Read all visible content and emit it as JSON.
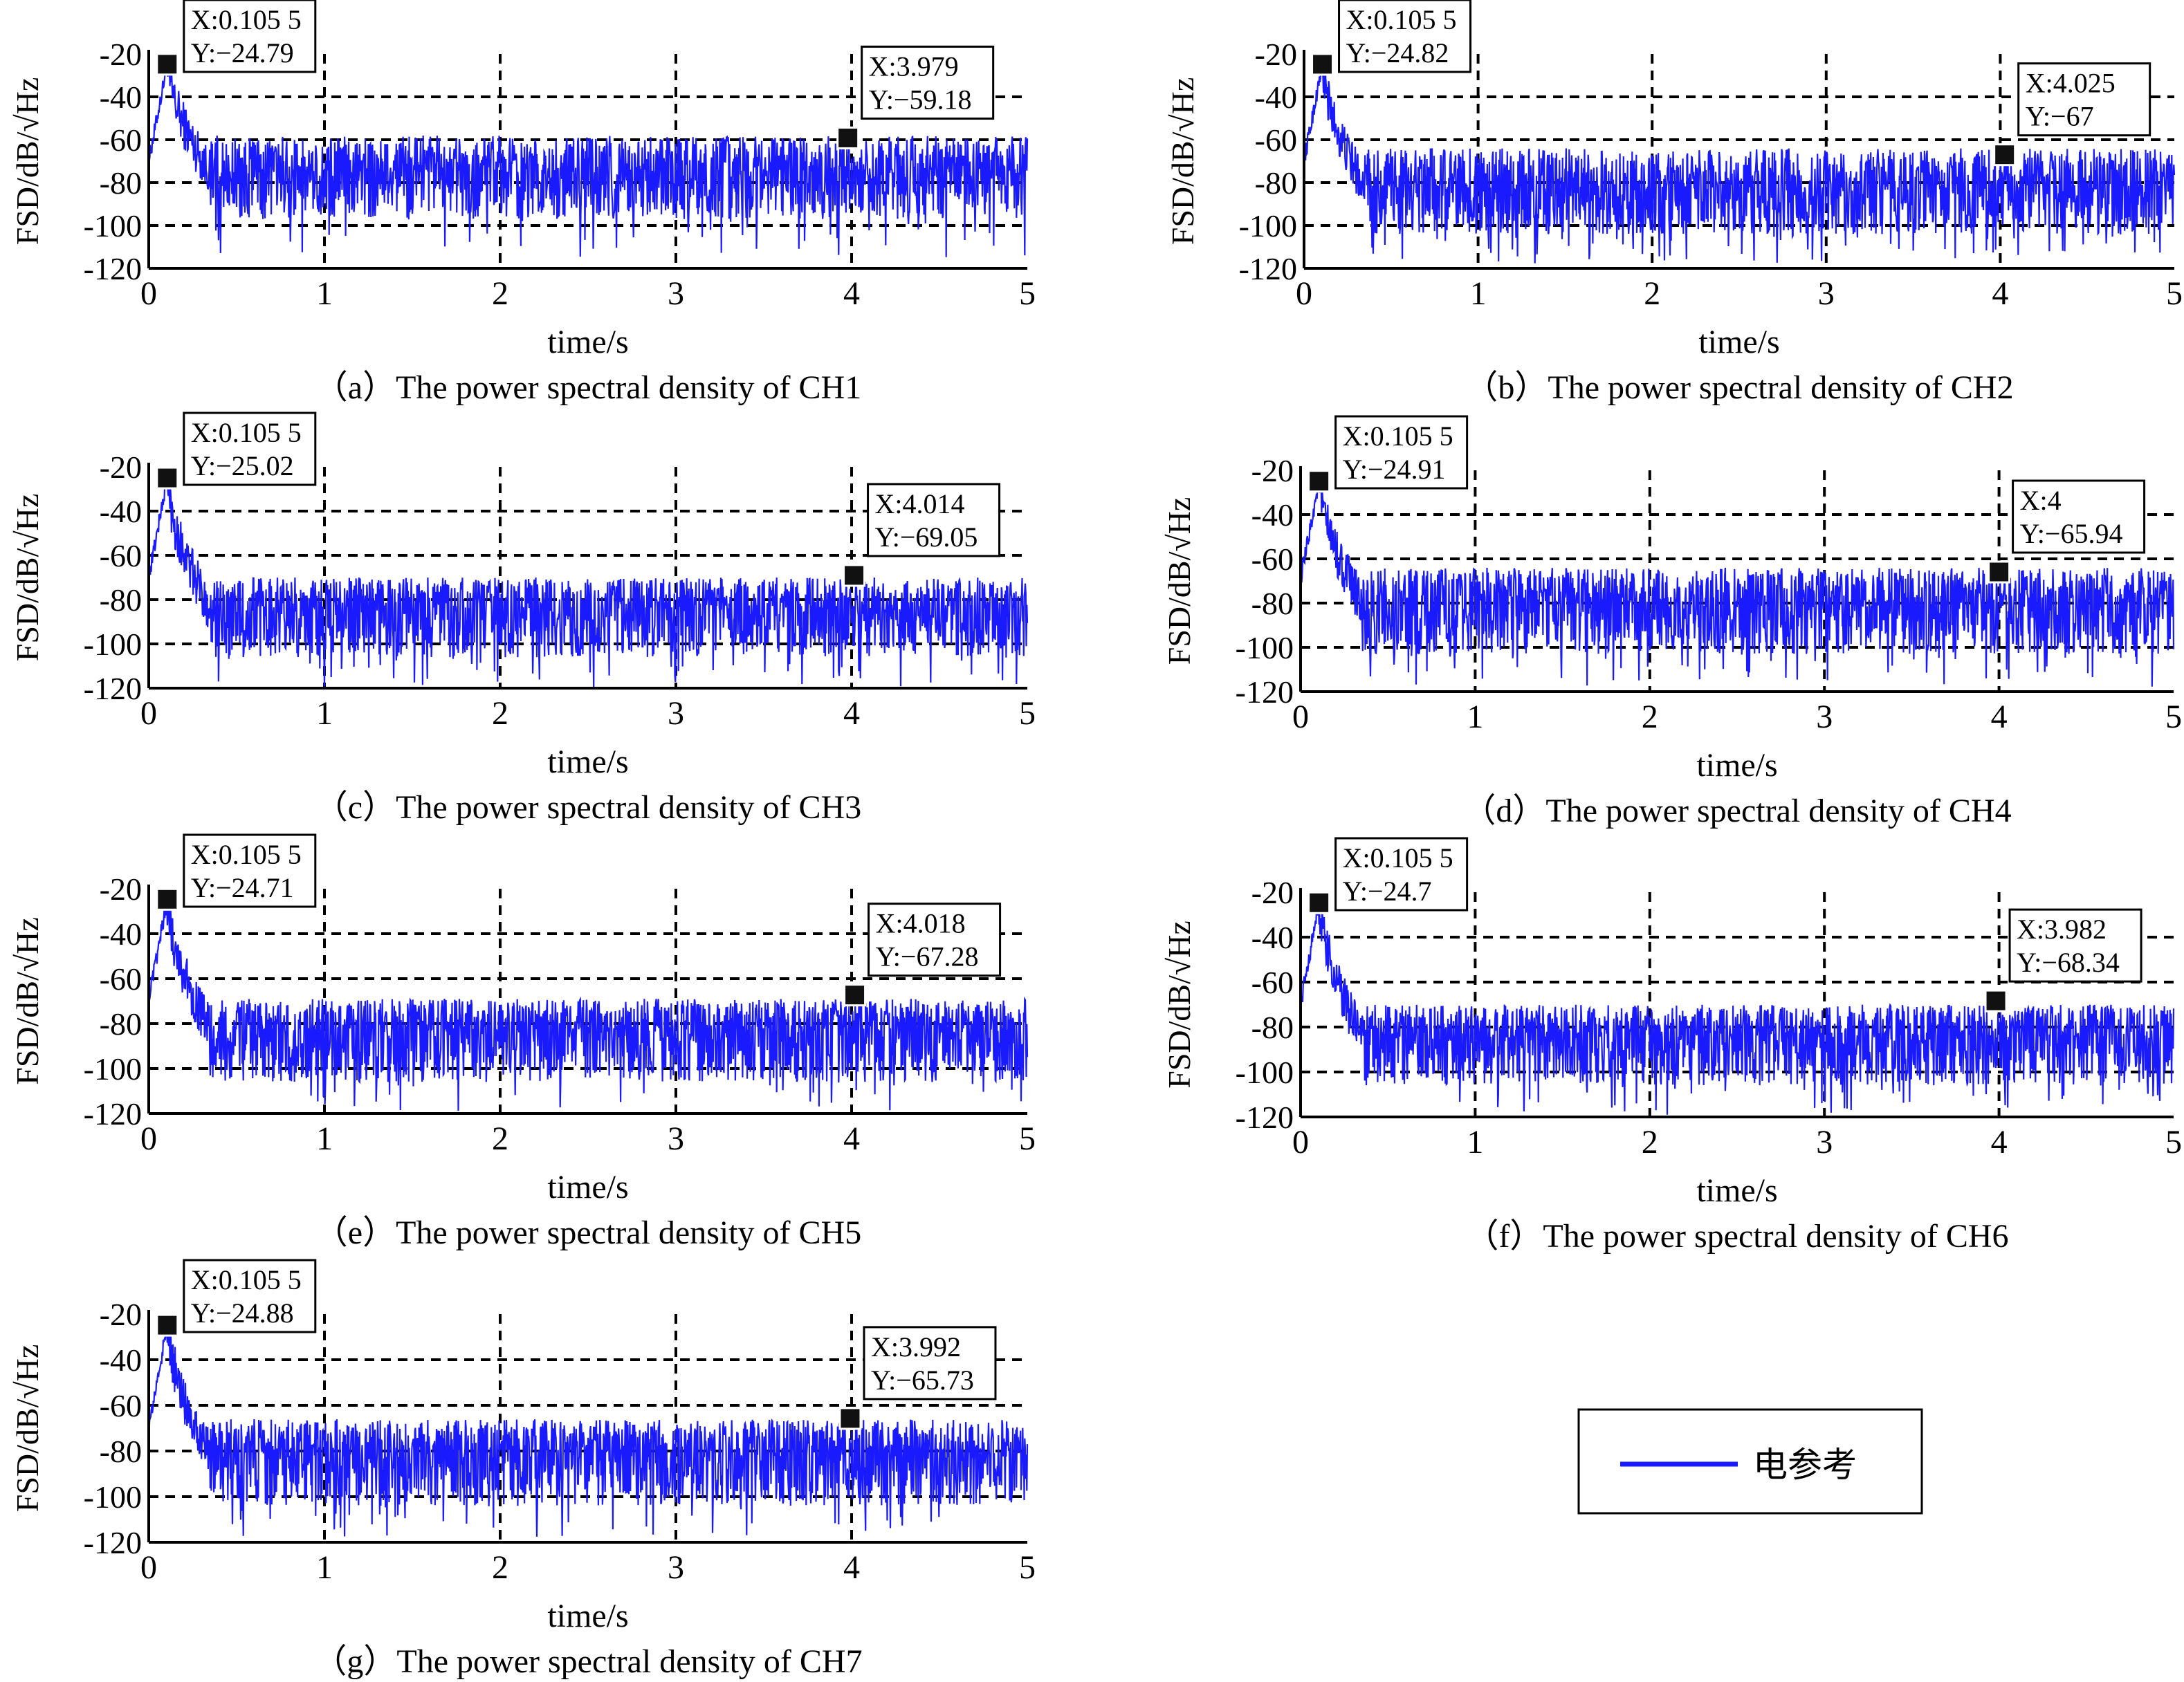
{
  "legend": {
    "label": "电参考",
    "color": "#1a1aff"
  },
  "chart_data": [
    {
      "type": "line",
      "panel": "a",
      "caption": "（a）The power spectral density of  CH1",
      "xlabel": "time/s",
      "ylabel": "FSD/dB/√Hz",
      "xlim": [
        0,
        5
      ],
      "ylim": [
        -120,
        -20
      ],
      "x_ticks": [
        "0",
        "1",
        "2",
        "3",
        "4",
        "5"
      ],
      "y_ticks": [
        "-20",
        "-40",
        "-60",
        "-80",
        "-100",
        "-120"
      ],
      "series": [
        {
          "name": "电参考",
          "color": "#1a1aff",
          "floor": -75,
          "top": -58,
          "bottom": -97,
          "dip": -116,
          "peak": {
            "x": 0.1055,
            "y": -24.79
          }
        }
      ],
      "datatips": [
        {
          "x": 0.1055,
          "y": -24.79,
          "x_text": "X:0.105 5",
          "y_text": "Y:−24.79"
        },
        {
          "x": 3.979,
          "y": -59.18,
          "x_text": "X:3.979",
          "y_text": "Y:−59.18"
        }
      ]
    },
    {
      "type": "line",
      "panel": "b",
      "caption": "（b）The power spectral density of   CH2",
      "xlabel": "time/s",
      "ylabel": "FSD/dB/√Hz",
      "xlim": [
        0,
        5
      ],
      "ylim": [
        -120,
        -20
      ],
      "x_ticks": [
        "0",
        "1",
        "2",
        "3",
        "4",
        "5"
      ],
      "y_ticks": [
        "-20",
        "-40",
        "-60",
        "-80",
        "-100",
        "-120"
      ],
      "series": [
        {
          "name": "电参考",
          "color": "#1a1aff",
          "floor": -82,
          "top": -64,
          "bottom": -104,
          "dip": -118,
          "peak": {
            "x": 0.1055,
            "y": -24.82
          }
        }
      ],
      "datatips": [
        {
          "x": 0.1055,
          "y": -24.82,
          "x_text": "X:0.105 5",
          "y_text": "Y:−24.82"
        },
        {
          "x": 4.025,
          "y": -67,
          "x_text": "X:4.025",
          "y_text": "Y:−67"
        }
      ]
    },
    {
      "type": "line",
      "panel": "c",
      "caption": "（c）The power spectral density of   CH3",
      "xlabel": "time/s",
      "ylabel": "FSD/dB/√Hz",
      "xlim": [
        0,
        5
      ],
      "ylim": [
        -120,
        -20
      ],
      "x_ticks": [
        "0",
        "1",
        "2",
        "3",
        "4",
        "5"
      ],
      "y_ticks": [
        "-20",
        "-40",
        "-60",
        "-80",
        "-100",
        "-120"
      ],
      "series": [
        {
          "name": "电参考",
          "color": "#1a1aff",
          "floor": -84,
          "top": -70,
          "bottom": -106,
          "dip": -120,
          "peak": {
            "x": 0.1055,
            "y": -25.02
          }
        }
      ],
      "datatips": [
        {
          "x": 0.1055,
          "y": -25.02,
          "x_text": "X:0.105 5",
          "y_text": "Y:−25.02"
        },
        {
          "x": 4.014,
          "y": -69.05,
          "x_text": "X:4.014",
          "y_text": "Y:−69.05"
        }
      ]
    },
    {
      "type": "line",
      "panel": "d",
      "caption": "（d）The power spectral density of   CH4",
      "xlabel": "time/s",
      "ylabel": "FSD/dB/√Hz",
      "xlim": [
        0,
        5
      ],
      "ylim": [
        -120,
        -20
      ],
      "x_ticks": [
        "0",
        "1",
        "2",
        "3",
        "4",
        "5"
      ],
      "y_ticks": [
        "-20",
        "-40",
        "-60",
        "-80",
        "-100",
        "-120"
      ],
      "series": [
        {
          "name": "电参考",
          "color": "#1a1aff",
          "floor": -80,
          "top": -64,
          "bottom": -103,
          "dip": -118,
          "peak": {
            "x": 0.1055,
            "y": -24.91
          }
        }
      ],
      "datatips": [
        {
          "x": 0.1055,
          "y": -24.91,
          "x_text": "X:0.105 5",
          "y_text": "Y:−24.91"
        },
        {
          "x": 4,
          "y": -65.94,
          "x_text": "X:4",
          "y_text": "Y:−65.94"
        }
      ]
    },
    {
      "type": "line",
      "panel": "e",
      "caption": "（e）The power spectral density of   CH5",
      "xlabel": "time/s",
      "ylabel": "FSD/dB/√Hz",
      "xlim": [
        0,
        5
      ],
      "ylim": [
        -120,
        -20
      ],
      "x_ticks": [
        "0",
        "1",
        "2",
        "3",
        "4",
        "5"
      ],
      "y_ticks": [
        "-20",
        "-40",
        "-60",
        "-80",
        "-100",
        "-120"
      ],
      "series": [
        {
          "name": "电参考",
          "color": "#1a1aff",
          "floor": -83,
          "top": -69,
          "bottom": -106,
          "dip": -119,
          "peak": {
            "x": 0.1055,
            "y": -24.71
          }
        }
      ],
      "datatips": [
        {
          "x": 0.1055,
          "y": -24.71,
          "x_text": "X:0.105 5",
          "y_text": "Y:−24.71"
        },
        {
          "x": 4.018,
          "y": -67.28,
          "x_text": "X:4.018",
          "y_text": "Y:−67.28"
        }
      ]
    },
    {
      "type": "line",
      "panel": "f",
      "caption": "（f）The power spectral density of   CH6",
      "xlabel": "time/s",
      "ylabel": "FSD/dB/√Hz",
      "xlim": [
        0,
        5
      ],
      "ylim": [
        -120,
        -20
      ],
      "x_ticks": [
        "0",
        "1",
        "2",
        "3",
        "4",
        "5"
      ],
      "y_ticks": [
        "-20",
        "-40",
        "-60",
        "-80",
        "-100",
        "-120"
      ],
      "series": [
        {
          "name": "电参考",
          "color": "#1a1aff",
          "floor": -84,
          "top": -70,
          "bottom": -106,
          "dip": -119,
          "peak": {
            "x": 0.1055,
            "y": -24.7
          }
        }
      ],
      "datatips": [
        {
          "x": 0.1055,
          "y": -24.7,
          "x_text": "X:0.105 5",
          "y_text": "Y:−24.7"
        },
        {
          "x": 3.982,
          "y": -68.34,
          "x_text": "X:3.982",
          "y_text": "Y:−68.34"
        }
      ]
    },
    {
      "type": "line",
      "panel": "g",
      "caption": "（g）The power spectral density of  CH7",
      "xlabel": "time/s",
      "ylabel": "FSD/dB/√Hz",
      "xlim": [
        0,
        5
      ],
      "ylim": [
        -120,
        -20
      ],
      "x_ticks": [
        "0",
        "1",
        "2",
        "3",
        "4",
        "5"
      ],
      "y_ticks": [
        "-20",
        "-40",
        "-60",
        "-80",
        "-100",
        "-120"
      ],
      "series": [
        {
          "name": "电参考",
          "color": "#1a1aff",
          "floor": -81,
          "top": -66,
          "bottom": -104,
          "dip": -118,
          "peak": {
            "x": 0.1055,
            "y": -24.88
          }
        }
      ],
      "datatips": [
        {
          "x": 0.1055,
          "y": -24.88,
          "x_text": "X:0.105 5",
          "y_text": "Y:−24.88"
        },
        {
          "x": 3.992,
          "y": -65.73,
          "x_text": "X:3.992",
          "y_text": "Y:−65.73"
        }
      ]
    }
  ]
}
